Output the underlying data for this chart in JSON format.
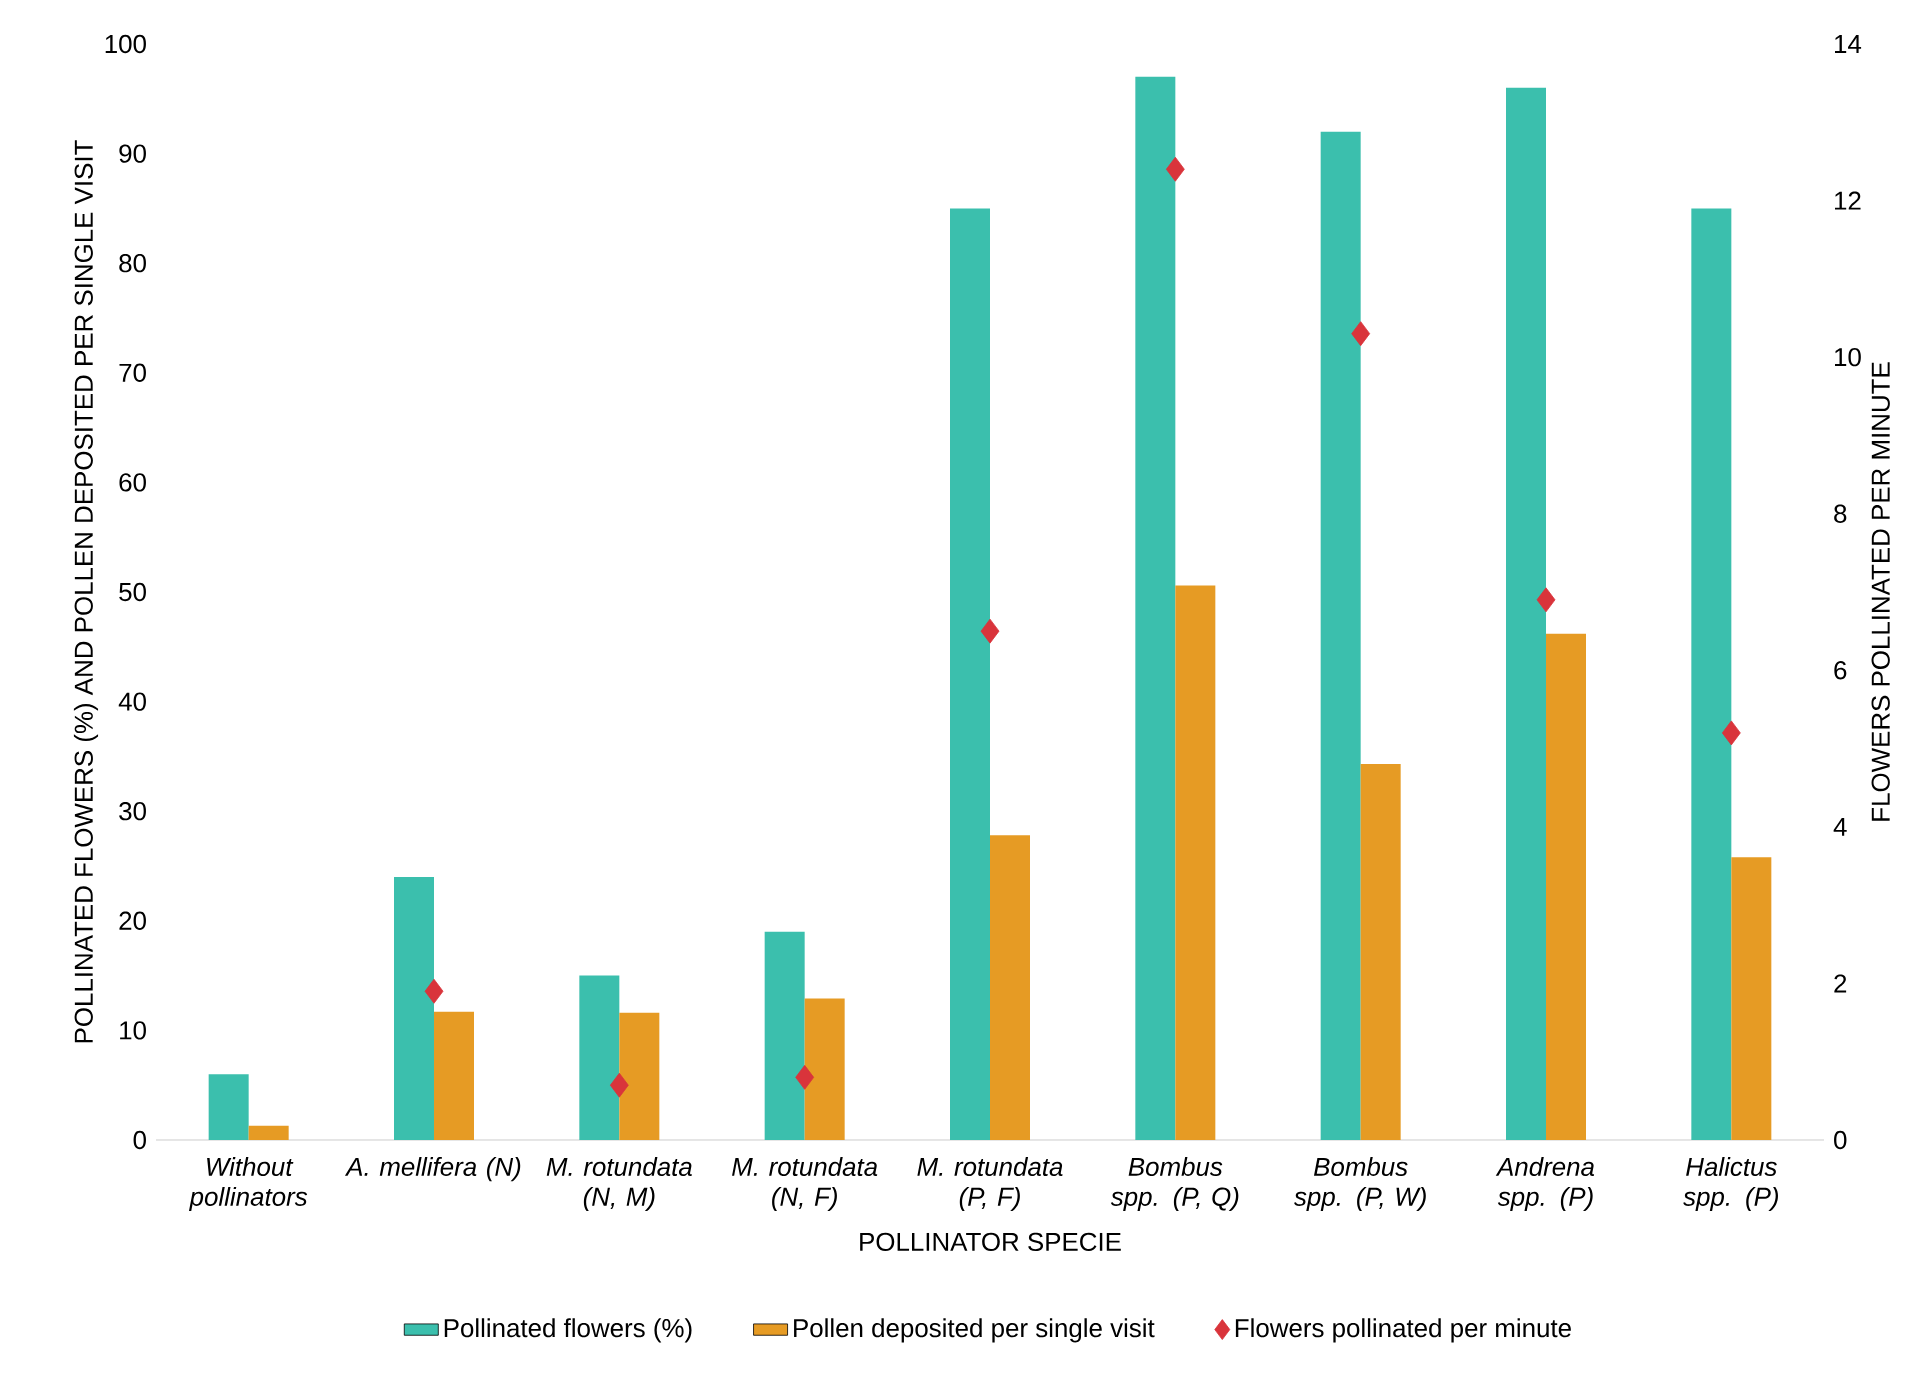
{
  "chart_data": {
    "type": "bar",
    "xlabel": "POLLINATOR SPECIE",
    "ylabel": "POLLINATED FLOWERS (%)  AND  POLLEN DEPOSITED PER SINGLE VISIT",
    "y2label": "FLOWERS POLLINATED PER MINUTE",
    "categories": [
      "Without pollinators",
      "A. mellifera (N)",
      "M. rotundata (N, M)",
      "M. rotundata (N, F)",
      "M. rotundata (P, F)",
      "Bombus spp. (P, Q)",
      "Bombus spp. (P, W)",
      "Andrena spp. (P)",
      "Halictus spp. (P)"
    ],
    "series": [
      {
        "name": "Pollinated flowers (%)",
        "color": "#3bbfad",
        "values": [
          6,
          24,
          15,
          19,
          85,
          97,
          92,
          96,
          85
        ]
      },
      {
        "name": "Pollen deposited per single visit",
        "color": "#e69b24",
        "values": [
          1.3,
          11.7,
          11.6,
          12.9,
          27.8,
          50.6,
          34.3,
          46.2,
          25.8
        ]
      },
      {
        "name": "Flowers pollinated per minute",
        "color": "#d9343b",
        "type": "scatter",
        "axis": "y2",
        "marker": "diamond",
        "values": [
          null,
          1.9,
          0.7,
          0.8,
          6.5,
          12.4,
          10.3,
          6.9,
          5.2
        ]
      }
    ],
    "ylim": [
      0,
      100
    ],
    "yticks": [
      0,
      10,
      20,
      30,
      40,
      50,
      60,
      70,
      80,
      90,
      100
    ],
    "y2lim": [
      0,
      14
    ],
    "y2ticks": [
      0,
      2,
      4,
      6,
      8,
      10,
      12,
      14
    ],
    "legend": "bottom"
  }
}
